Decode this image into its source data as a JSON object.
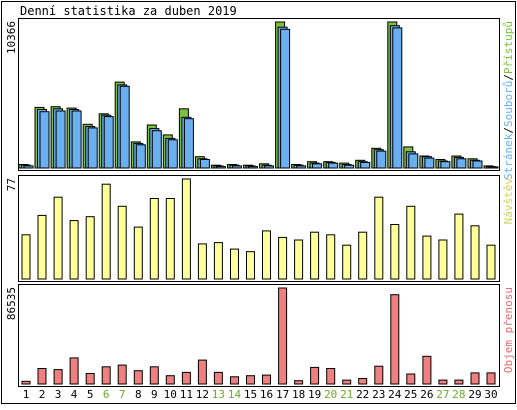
{
  "chart_data": {
    "title": "Denní statistika za duben 2019",
    "type": "bar",
    "categories": [
      "1",
      "2",
      "3",
      "4",
      "5",
      "6",
      "7",
      "8",
      "9",
      "10",
      "11",
      "12",
      "13",
      "14",
      "15",
      "16",
      "17",
      "18",
      "19",
      "20",
      "21",
      "22",
      "23",
      "24",
      "25",
      "26",
      "27",
      "28",
      "29",
      "30"
    ],
    "weekend_days": [
      "6",
      "7",
      "13",
      "14",
      "20",
      "21",
      "27",
      "28"
    ],
    "colors": {
      "weekday_label": "#000000",
      "weekend_label": "#6aaa2a",
      "green": "#7dc040",
      "blue": "#6ab0f0",
      "yellow": "#ffff99",
      "red": "#f08080",
      "visits_label": "#d0d060",
      "volume_label": "#e07070"
    },
    "panels": [
      {
        "id": "top",
        "ylabel_value": "10366",
        "legend": [
          {
            "text": "Stránek",
            "color": "#6ab0f0"
          },
          {
            "text": "Souborů",
            "color": "#6ab0f0"
          },
          {
            "text": "Přístupů",
            "color": "#7dc040"
          }
        ],
        "ymax": 10366,
        "series": [
          {
            "name": "Přístupů",
            "color": "#7dc040",
            "values": [
              250,
              4300,
              4350,
              4250,
              3100,
              3850,
              6100,
              1850,
              3050,
              2350,
              4200,
              800,
              200,
              250,
              200,
              300,
              10366,
              250,
              450,
              450,
              350,
              550,
              1400,
              10366,
              1500,
              850,
              600,
              850,
              650,
              150
            ]
          },
          {
            "name": "Souborů",
            "color": "#6ab0f0",
            "values": [
              200,
              4150,
              4200,
              4150,
              2950,
              3750,
              5900,
              1750,
              2800,
              2100,
              3600,
              650,
              150,
              200,
              150,
              200,
              10000,
              200,
              350,
              400,
              250,
              450,
              1300,
              10100,
              1150,
              800,
              500,
              750,
              550,
              100
            ]
          },
          {
            "name": "Stránek",
            "color": "#6ab0f0",
            "values": [
              150,
              4000,
              4050,
              4050,
              2850,
              3650,
              5800,
              1650,
              2650,
              2000,
              3500,
              600,
              100,
              150,
              100,
              150,
              9850,
              150,
              300,
              350,
              200,
              400,
              1200,
              9950,
              1000,
              700,
              450,
              650,
              500,
              80
            ]
          }
        ]
      },
      {
        "id": "middle",
        "ylabel_value": "77",
        "legend": [
          {
            "text": "Návštěv",
            "color": "#d0d060"
          }
        ],
        "ymax": 77,
        "series": [
          {
            "name": "Návštěv",
            "color": "#ffff99",
            "values": [
              34,
              49,
              63,
              45,
              48,
              73,
              56,
              40,
              62,
              62,
              77,
              27,
              28,
              23,
              21,
              37,
              32,
              30,
              36,
              34,
              26,
              36,
              63,
              42,
              56,
              33,
              30,
              50,
              41,
              26
            ]
          }
        ]
      },
      {
        "id": "bottom",
        "ylabel_value": "86535",
        "legend": [
          {
            "text": "Objem přenosu",
            "color": "#e07070"
          }
        ],
        "ymax": 86535,
        "series": [
          {
            "name": "Objem přenosu",
            "color": "#f08080",
            "values": [
              2400,
              14000,
              13000,
              23500,
              9500,
              15500,
              17000,
              12000,
              15500,
              7500,
              10500,
              21500,
              10500,
              6500,
              7500,
              8000,
              86535,
              3000,
              15000,
              14000,
              3500,
              5000,
              16000,
              80500,
              9000,
              25000,
              3500,
              3500,
              10000,
              10000
            ]
          }
        ]
      }
    ]
  }
}
